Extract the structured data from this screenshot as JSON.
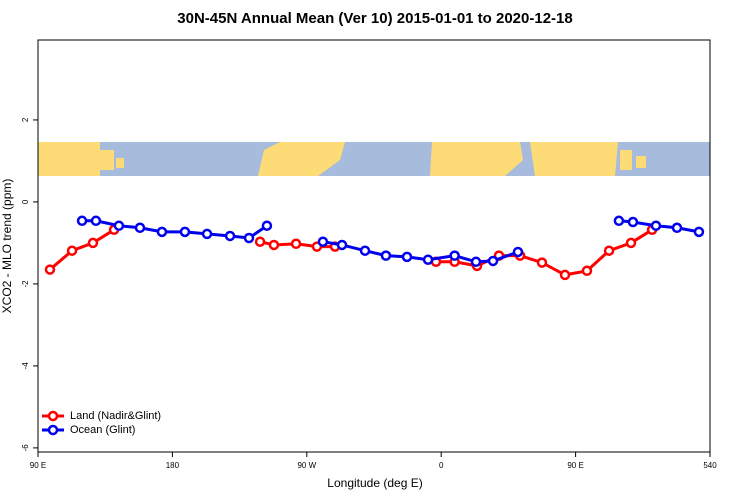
{
  "chart_data": {
    "type": "line",
    "title": "30N-45N Annual Mean (Ver 10)   2015-01-01 to 2020-12-18",
    "x_label": "Longitude (deg E)",
    "y_label": "XCO2 - MLO trend (ppm)",
    "xlim": [
      90,
      540
    ],
    "ylim": [
      -6.1,
      3.95
    ],
    "xticks": [
      {
        "value": 90,
        "label": "90 E"
      },
      180,
      {
        "value": 270,
        "label": "90 W"
      },
      {
        "value": 360,
        "label": "0"
      },
      {
        "value": 450,
        "label": "90 E"
      },
      540
    ],
    "yticks": [
      -6,
      -4,
      -2,
      0,
      2
    ],
    "legend": "bottom-left",
    "series": [
      {
        "name": "Land (Nadir&Glint)",
        "color": "#ff0000",
        "x": [
          98,
          112.8,
          126.8,
          140.9,
          null,
          238.7,
          248,
          262.8,
          276.8,
          288.9,
          null,
          356.5,
          369,
          384,
          398.7,
          412.8,
          427.5,
          442.9,
          457.6,
          472.4,
          487.1,
          501.2
        ],
        "values": [
          -1.65,
          -1.19,
          -1.0,
          -0.68,
          null,
          -0.97,
          -1.05,
          -1.02,
          -1.09,
          -1.09,
          null,
          -1.46,
          -1.46,
          -1.56,
          -1.31,
          -1.31,
          -1.48,
          -1.78,
          -1.68,
          -1.19,
          -1.0,
          -0.68
        ]
      },
      {
        "name": "Ocean (Glint)",
        "color": "#0000ee",
        "x": [
          119.5,
          128.8,
          144.2,
          158.3,
          173,
          188.4,
          203.2,
          218.6,
          231.3,
          243.3,
          null,
          280.8,
          293.6,
          309,
          323,
          337.1,
          351.2,
          369,
          383.3,
          394.7,
          411.4,
          null,
          479,
          488.4,
          503.8,
          517.9,
          532.6
        ],
        "values": [
          -0.46,
          -0.46,
          -0.58,
          -0.63,
          -0.73,
          -0.73,
          -0.78,
          -0.83,
          -0.88,
          -0.58,
          null,
          -0.97,
          -1.05,
          -1.19,
          -1.31,
          -1.34,
          -1.41,
          -1.31,
          -1.46,
          -1.44,
          -1.22,
          null,
          -0.46,
          -0.49,
          -0.58,
          -0.63,
          -0.73
        ]
      }
    ]
  }
}
